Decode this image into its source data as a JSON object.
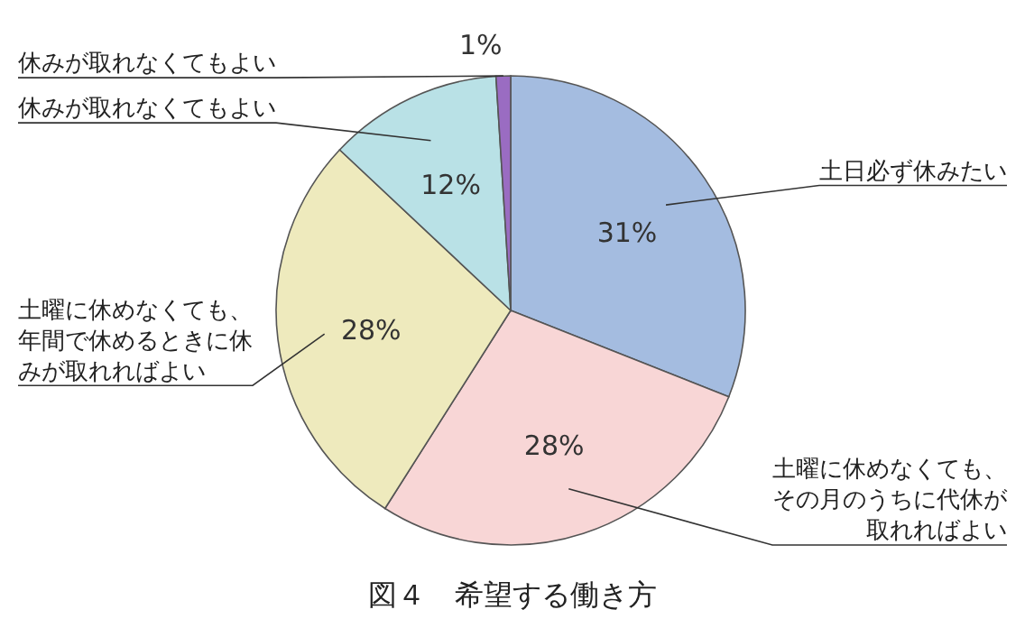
{
  "chart_data": {
    "type": "pie",
    "title": "図４　希望する働き方",
    "categories": [
      "土日必ず休みたい",
      "土曜に休めなくても、その月のうちに代休が取れればよい",
      "土曜に休めなくても、年間で休めるときに休みが取れればよい",
      "休みが取れなくてもよい",
      "休みが取れなくてもよい"
    ],
    "values": [
      31,
      28,
      28,
      12,
      1
    ],
    "colors": [
      "#a4bce0",
      "#f8d6d6",
      "#eeeabd",
      "#b9e1e6",
      "#9a6cc2"
    ],
    "value_labels": [
      "31%",
      "28%",
      "28%",
      "12%",
      "1%"
    ]
  }
}
